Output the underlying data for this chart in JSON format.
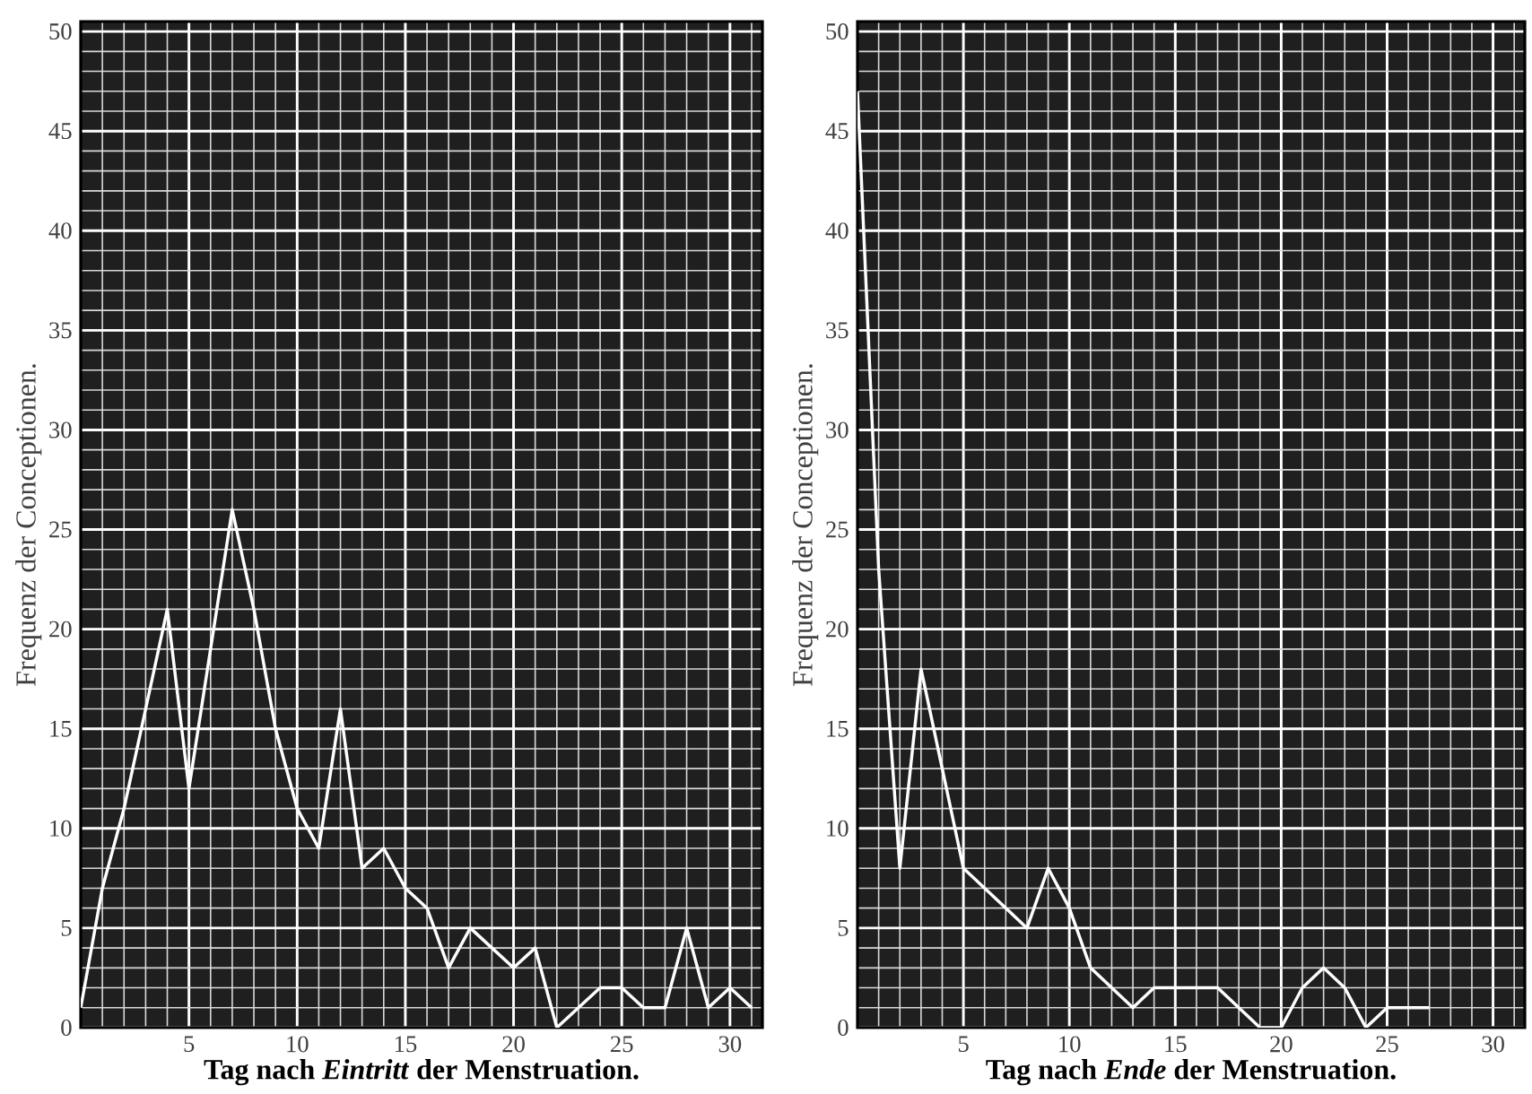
{
  "chart_data": [
    {
      "type": "line",
      "xlabel": "Tag nach *Eintritt* der Menstruation.",
      "ylabel": "Frequenz der Conceptionen.",
      "x": [
        0,
        1,
        2,
        3,
        4,
        5,
        6,
        7,
        8,
        9,
        10,
        11,
        12,
        13,
        14,
        15,
        16,
        17,
        18,
        19,
        20,
        21,
        22,
        23,
        24,
        25,
        26,
        27,
        28,
        29,
        30,
        31
      ],
      "series": [
        {
          "color": "#ffffff",
          "values": [
            1,
            7,
            11,
            16,
            21,
            12,
            19,
            26,
            21,
            15,
            11,
            9,
            16,
            8,
            9,
            7,
            6,
            3,
            5,
            4,
            3,
            4,
            0,
            1,
            2,
            2,
            1,
            1,
            5,
            1,
            2,
            1
          ]
        }
      ],
      "xlim": [
        0,
        31.5
      ],
      "ylim": [
        0,
        50.5
      ],
      "xticks": [
        5,
        10,
        15,
        20,
        25,
        30
      ],
      "yticks": [
        0,
        5,
        10,
        15,
        20,
        25,
        30,
        35,
        40,
        45,
        50
      ],
      "grid": true,
      "marker": "none",
      "line_style": "solid"
    },
    {
      "type": "line",
      "xlabel": "Tag nach *Ende* der Menstruation.",
      "ylabel": "Frequenz der Conceptionen.",
      "x": [
        0,
        1,
        2,
        3,
        4,
        5,
        6,
        7,
        8,
        9,
        10,
        11,
        12,
        13,
        14,
        15,
        16,
        17,
        18,
        19,
        20,
        21,
        22,
        23,
        24,
        25,
        26,
        27
      ],
      "series": [
        {
          "color": "#ffffff",
          "values": [
            47,
            23,
            8,
            18,
            13,
            8,
            7,
            6,
            5,
            8,
            6,
            3,
            2,
            1,
            2,
            2,
            2,
            2,
            1,
            0,
            0,
            2,
            3,
            2,
            0,
            1,
            1,
            1
          ]
        }
      ],
      "xlim": [
        0,
        31.5
      ],
      "ylim": [
        0,
        50.5
      ],
      "xticks": [
        5,
        10,
        15,
        20,
        25,
        30
      ],
      "yticks": [
        0,
        5,
        10,
        15,
        20,
        25,
        30,
        35,
        40,
        45,
        50
      ],
      "grid": true,
      "marker": "none",
      "line_style": "solid"
    }
  ]
}
